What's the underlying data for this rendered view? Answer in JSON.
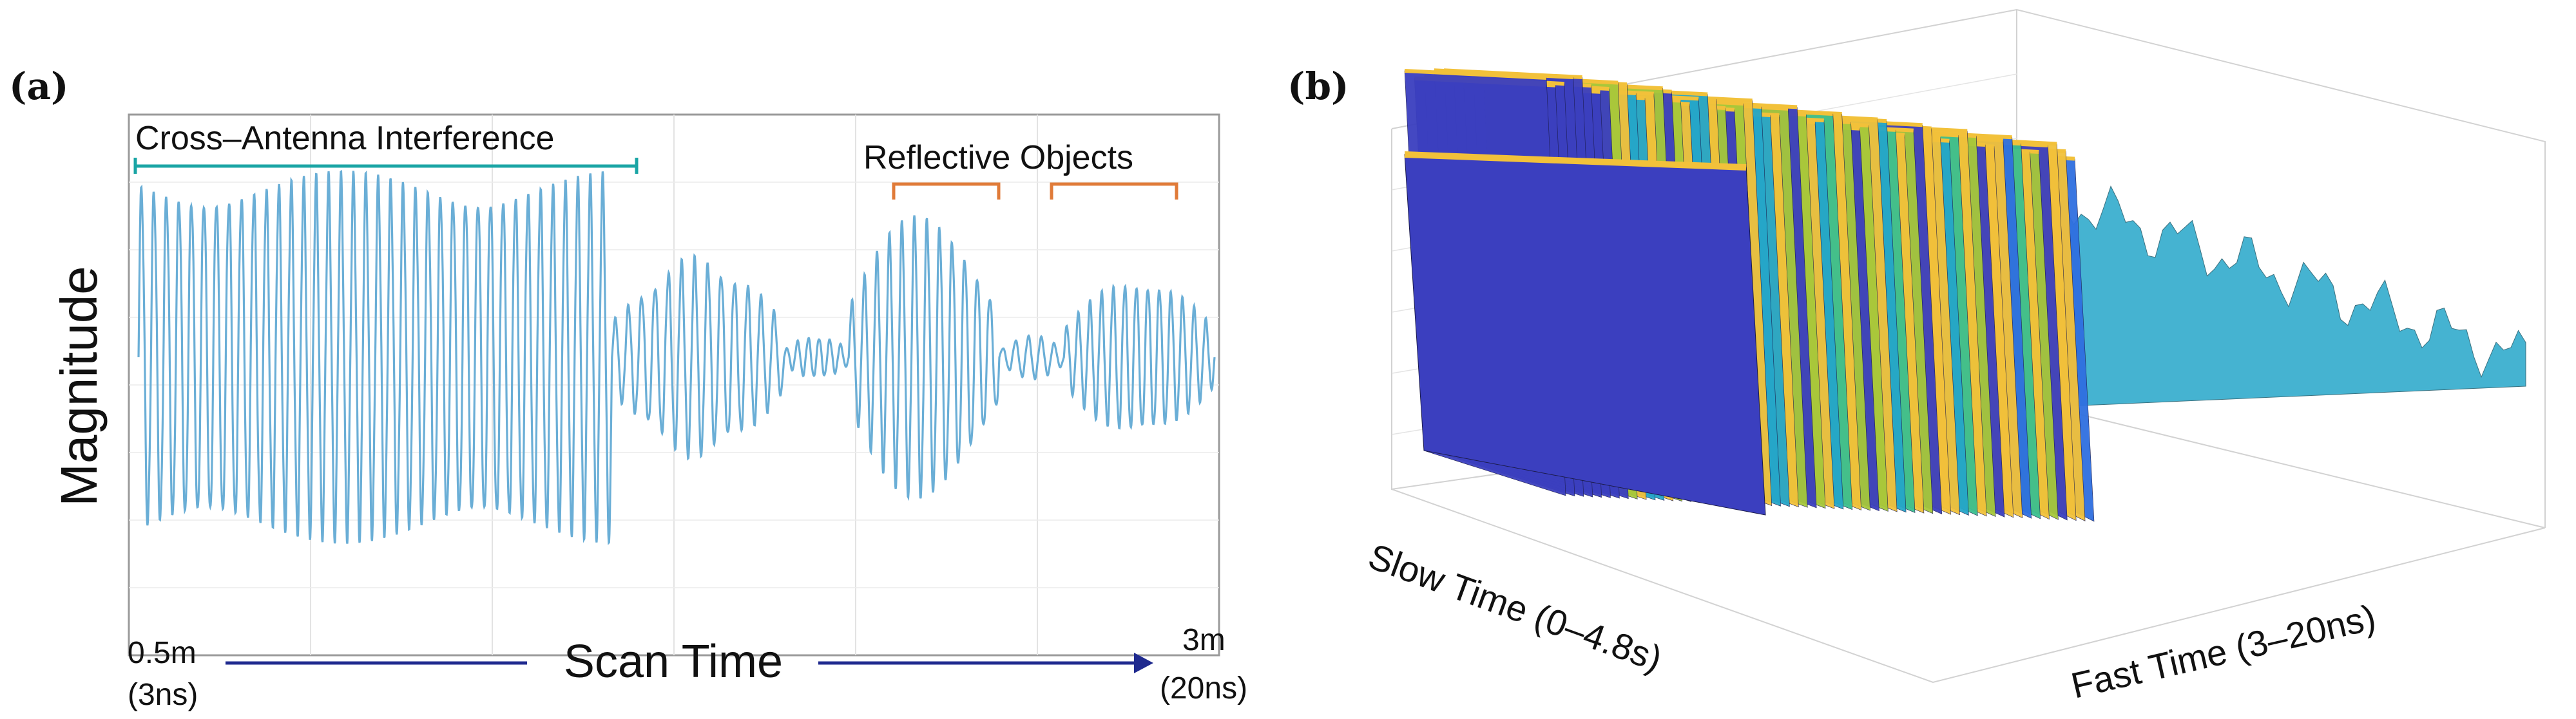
{
  "panels": {
    "a": {
      "label": "(a)"
    },
    "b": {
      "label": "(b)"
    }
  },
  "chart_data": [
    {
      "panel": "a",
      "type": "line",
      "ylabel": "Magnitude",
      "xlabel": "Scan Time",
      "x_start_label": "0.5m",
      "x_start_sub": "(3ns)",
      "x_end_label": "3m",
      "x_end_sub": "(20ns)",
      "grid": true,
      "annotations": [
        {
          "text": "Cross–Antenna Interference",
          "color": "#1aa5a5"
        },
        {
          "text": "Reflective Objects",
          "color": "#e07b39"
        }
      ],
      "line_color": "#6aaed6",
      "series": [
        {
          "segments": [
            {
              "t_start": 0.0,
              "t_end": 0.44,
              "amplitude": 1.0,
              "cycles": 38
            },
            {
              "t_start": 0.44,
              "t_end": 0.6,
              "amplitude": 0.55,
              "cycles": 13
            },
            {
              "t_start": 0.6,
              "t_end": 0.66,
              "amplitude": 0.12,
              "cycles": 6
            },
            {
              "t_start": 0.66,
              "t_end": 0.8,
              "amplitude": 0.8,
              "cycles": 12
            },
            {
              "t_start": 0.8,
              "t_end": 0.86,
              "amplitude": 0.12,
              "cycles": 5
            },
            {
              "t_start": 0.86,
              "t_end": 1.0,
              "amplitude": 0.45,
              "cycles": 13
            }
          ]
        }
      ]
    },
    {
      "panel": "b",
      "type": "surface",
      "xlabel": "Slow Time (0–4.8s)",
      "ylabel": "Fast Time (3–20ns)",
      "colormap": [
        "#3b3fbf",
        "#2f6fe0",
        "#25a6c9",
        "#3bbf8f",
        "#a6c83a",
        "#f2c13a"
      ]
    }
  ]
}
